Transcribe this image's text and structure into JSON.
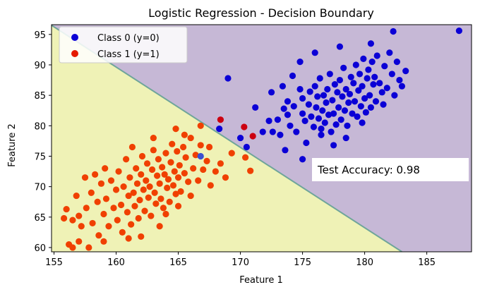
{
  "chart_data": {
    "type": "scatter",
    "title": "Logistic Regression - Decision Boundary",
    "xlabel": "Feature 1",
    "ylabel": "Feature 2",
    "xlim": [
      154.8,
      188.6
    ],
    "ylim": [
      59.3,
      96.6
    ],
    "xticks": [
      155,
      160,
      165,
      170,
      175,
      180,
      185
    ],
    "yticks": [
      60,
      65,
      70,
      75,
      80,
      85,
      90,
      95
    ],
    "grid": false,
    "legend_position": "top-left",
    "colors": {
      "class0": "#0b00d6",
      "class1_train": "#f04000",
      "class1_test": "#cc0010",
      "class0_test": "#3a50d0",
      "region0": "#c6b8d6",
      "region1": "#eff2b6",
      "boundary": "#6fa59a"
    },
    "decision_boundary": {
      "x": [
        154.8,
        183.0
      ],
      "y": [
        96.5,
        59.3
      ]
    },
    "legend": [
      {
        "label": "Class 0 (y=0)",
        "color": "#0b00d6"
      },
      {
        "label": "Class 1 (y=1)",
        "color": "#e51a00"
      }
    ],
    "annotation": "Test Accuracy: 0.98",
    "series": [
      {
        "name": "Class 0 (y=0)",
        "color": "#0b00d6",
        "points": [
          [
            168.3,
            79.5
          ],
          [
            169.0,
            87.8
          ],
          [
            170.0,
            78.0
          ],
          [
            170.5,
            76.5
          ],
          [
            171.2,
            83.0
          ],
          [
            171.8,
            79.0
          ],
          [
            172.3,
            80.8
          ],
          [
            172.5,
            85.5
          ],
          [
            172.6,
            79.0
          ],
          [
            173.0,
            81.0
          ],
          [
            173.2,
            78.5
          ],
          [
            173.4,
            86.5
          ],
          [
            173.5,
            82.8
          ],
          [
            173.6,
            76.0
          ],
          [
            173.8,
            84.0
          ],
          [
            174.0,
            80.0
          ],
          [
            174.2,
            88.2
          ],
          [
            174.3,
            83.2
          ],
          [
            174.5,
            79.0
          ],
          [
            174.8,
            86.0
          ],
          [
            175.0,
            82.0
          ],
          [
            175.0,
            84.5
          ],
          [
            175.2,
            80.8
          ],
          [
            175.3,
            77.2
          ],
          [
            175.5,
            83.5
          ],
          [
            175.6,
            85.6
          ],
          [
            175.7,
            81.5
          ],
          [
            175.9,
            79.8
          ],
          [
            176.0,
            86.5
          ],
          [
            176.1,
            83.0
          ],
          [
            176.2,
            84.8
          ],
          [
            176.3,
            81.2
          ],
          [
            176.4,
            87.8
          ],
          [
            176.5,
            79.5
          ],
          [
            176.6,
            82.5
          ],
          [
            176.7,
            85.0
          ],
          [
            176.8,
            80.5
          ],
          [
            176.9,
            83.8
          ],
          [
            177.0,
            86.0
          ],
          [
            177.1,
            81.8
          ],
          [
            177.2,
            88.5
          ],
          [
            177.3,
            79.0
          ],
          [
            177.4,
            84.2
          ],
          [
            177.5,
            82.0
          ],
          [
            177.6,
            86.8
          ],
          [
            177.7,
            80.2
          ],
          [
            177.8,
            85.5
          ],
          [
            177.9,
            83.0
          ],
          [
            178.0,
            87.5
          ],
          [
            178.1,
            81.0
          ],
          [
            178.2,
            84.8
          ],
          [
            178.3,
            89.5
          ],
          [
            178.4,
            82.5
          ],
          [
            178.5,
            86.0
          ],
          [
            178.6,
            80.0
          ],
          [
            178.7,
            83.8
          ],
          [
            178.8,
            85.2
          ],
          [
            178.9,
            88.0
          ],
          [
            179.0,
            82.0
          ],
          [
            179.1,
            87.0
          ],
          [
            179.2,
            84.0
          ],
          [
            179.3,
            90.0
          ],
          [
            179.4,
            81.5
          ],
          [
            179.5,
            85.8
          ],
          [
            179.6,
            88.5
          ],
          [
            179.7,
            83.2
          ],
          [
            179.8,
            86.5
          ],
          [
            179.9,
            91.0
          ],
          [
            180.0,
            84.5
          ],
          [
            180.1,
            82.2
          ],
          [
            180.2,
            87.8
          ],
          [
            180.3,
            89.2
          ],
          [
            180.4,
            85.0
          ],
          [
            180.5,
            83.0
          ],
          [
            180.6,
            90.5
          ],
          [
            180.7,
            86.8
          ],
          [
            180.8,
            88.0
          ],
          [
            180.9,
            84.0
          ],
          [
            181.0,
            91.5
          ],
          [
            181.2,
            87.0
          ],
          [
            181.4,
            85.5
          ],
          [
            181.6,
            89.8
          ],
          [
            181.8,
            86.2
          ],
          [
            182.0,
            92.0
          ],
          [
            182.2,
            88.5
          ],
          [
            182.4,
            85.0
          ],
          [
            182.6,
            90.5
          ],
          [
            182.8,
            87.5
          ],
          [
            183.0,
            86.5
          ],
          [
            183.3,
            89.0
          ],
          [
            181.5,
            83.5
          ],
          [
            178.0,
            93.0
          ],
          [
            176.0,
            92.0
          ],
          [
            174.8,
            90.5
          ],
          [
            180.5,
            93.5
          ],
          [
            182.3,
            95.5
          ],
          [
            187.6,
            95.6
          ],
          [
            177.5,
            76.8
          ],
          [
            175.0,
            74.5
          ],
          [
            173.8,
            81.8
          ],
          [
            176.5,
            78.5
          ],
          [
            178.5,
            78.0
          ],
          [
            179.8,
            80.5
          ]
        ]
      },
      {
        "name": "Class 1 (y=1)",
        "color": "#f04000",
        "points": [
          [
            155.8,
            64.8
          ],
          [
            156.0,
            66.3
          ],
          [
            156.2,
            60.5
          ],
          [
            156.5,
            64.5
          ],
          [
            156.8,
            68.5
          ],
          [
            157.0,
            61.0
          ],
          [
            157.2,
            63.5
          ],
          [
            157.5,
            71.5
          ],
          [
            157.6,
            66.5
          ],
          [
            157.8,
            60.0
          ],
          [
            158.0,
            69.0
          ],
          [
            158.1,
            64.0
          ],
          [
            158.3,
            72.0
          ],
          [
            158.5,
            67.5
          ],
          [
            158.6,
            62.0
          ],
          [
            158.8,
            70.5
          ],
          [
            159.0,
            65.5
          ],
          [
            159.1,
            73.0
          ],
          [
            159.2,
            68.0
          ],
          [
            159.4,
            63.5
          ],
          [
            159.6,
            71.0
          ],
          [
            159.8,
            66.5
          ],
          [
            160.0,
            69.5
          ],
          [
            160.1,
            64.5
          ],
          [
            160.2,
            72.5
          ],
          [
            160.4,
            67.0
          ],
          [
            160.5,
            62.5
          ],
          [
            160.6,
            70.0
          ],
          [
            160.8,
            74.5
          ],
          [
            160.9,
            65.8
          ],
          [
            161.0,
            68.5
          ],
          [
            161.1,
            71.5
          ],
          [
            161.2,
            63.8
          ],
          [
            161.3,
            76.5
          ],
          [
            161.4,
            69.0
          ],
          [
            161.5,
            66.8
          ],
          [
            161.6,
            73.0
          ],
          [
            161.7,
            70.5
          ],
          [
            161.8,
            64.8
          ],
          [
            161.9,
            67.8
          ],
          [
            162.0,
            72.0
          ],
          [
            162.1,
            75.0
          ],
          [
            162.2,
            69.5
          ],
          [
            162.3,
            66.0
          ],
          [
            162.4,
            71.0
          ],
          [
            162.5,
            73.8
          ],
          [
            162.6,
            68.2
          ],
          [
            162.7,
            70.0
          ],
          [
            162.8,
            65.2
          ],
          [
            162.9,
            72.8
          ],
          [
            163.0,
            76.0
          ],
          [
            163.1,
            69.0
          ],
          [
            163.2,
            67.2
          ],
          [
            163.3,
            71.8
          ],
          [
            163.4,
            74.5
          ],
          [
            163.5,
            70.5
          ],
          [
            163.6,
            68.0
          ],
          [
            163.7,
            73.2
          ],
          [
            163.8,
            66.5
          ],
          [
            163.9,
            72.0
          ],
          [
            164.0,
            75.5
          ],
          [
            164.1,
            69.8
          ],
          [
            164.2,
            71.2
          ],
          [
            164.3,
            67.5
          ],
          [
            164.4,
            74.0
          ],
          [
            164.5,
            77.0
          ],
          [
            164.6,
            70.2
          ],
          [
            164.7,
            72.5
          ],
          [
            164.8,
            68.8
          ],
          [
            164.9,
            75.8
          ],
          [
            165.0,
            71.5
          ],
          [
            165.1,
            73.5
          ],
          [
            165.2,
            69.2
          ],
          [
            165.4,
            76.5
          ],
          [
            165.5,
            72.2
          ],
          [
            165.6,
            74.8
          ],
          [
            165.8,
            70.8
          ],
          [
            166.0,
            78.0
          ],
          [
            166.2,
            73.0
          ],
          [
            166.4,
            75.2
          ],
          [
            166.6,
            71.0
          ],
          [
            166.8,
            76.8
          ],
          [
            167.0,
            72.8
          ],
          [
            167.3,
            74.2
          ],
          [
            167.6,
            70.2
          ],
          [
            168.0,
            72.5
          ],
          [
            168.4,
            73.8
          ],
          [
            168.8,
            71.5
          ],
          [
            169.3,
            75.5
          ],
          [
            170.4,
            74.8
          ],
          [
            170.8,
            72.6
          ],
          [
            164.8,
            79.5
          ],
          [
            163.0,
            78.0
          ],
          [
            165.5,
            78.5
          ],
          [
            166.8,
            80.0
          ],
          [
            167.5,
            76.5
          ],
          [
            161.0,
            61.5
          ],
          [
            163.5,
            63.5
          ],
          [
            164.0,
            65.5
          ],
          [
            162.0,
            61.8
          ],
          [
            159.0,
            61.0
          ],
          [
            156.5,
            60.0
          ],
          [
            157.0,
            65.2
          ],
          [
            166.0,
            68.5
          ],
          [
            165.0,
            66.8
          ]
        ]
      },
      {
        "name": "",
        "color": "#cc0010",
        "points": [
          [
            168.4,
            81.0
          ],
          [
            170.3,
            79.8
          ],
          [
            171.0,
            78.3
          ]
        ]
      },
      {
        "name": "",
        "color": "#3a50d0",
        "points": [
          [
            166.8,
            75.0
          ]
        ]
      }
    ]
  }
}
